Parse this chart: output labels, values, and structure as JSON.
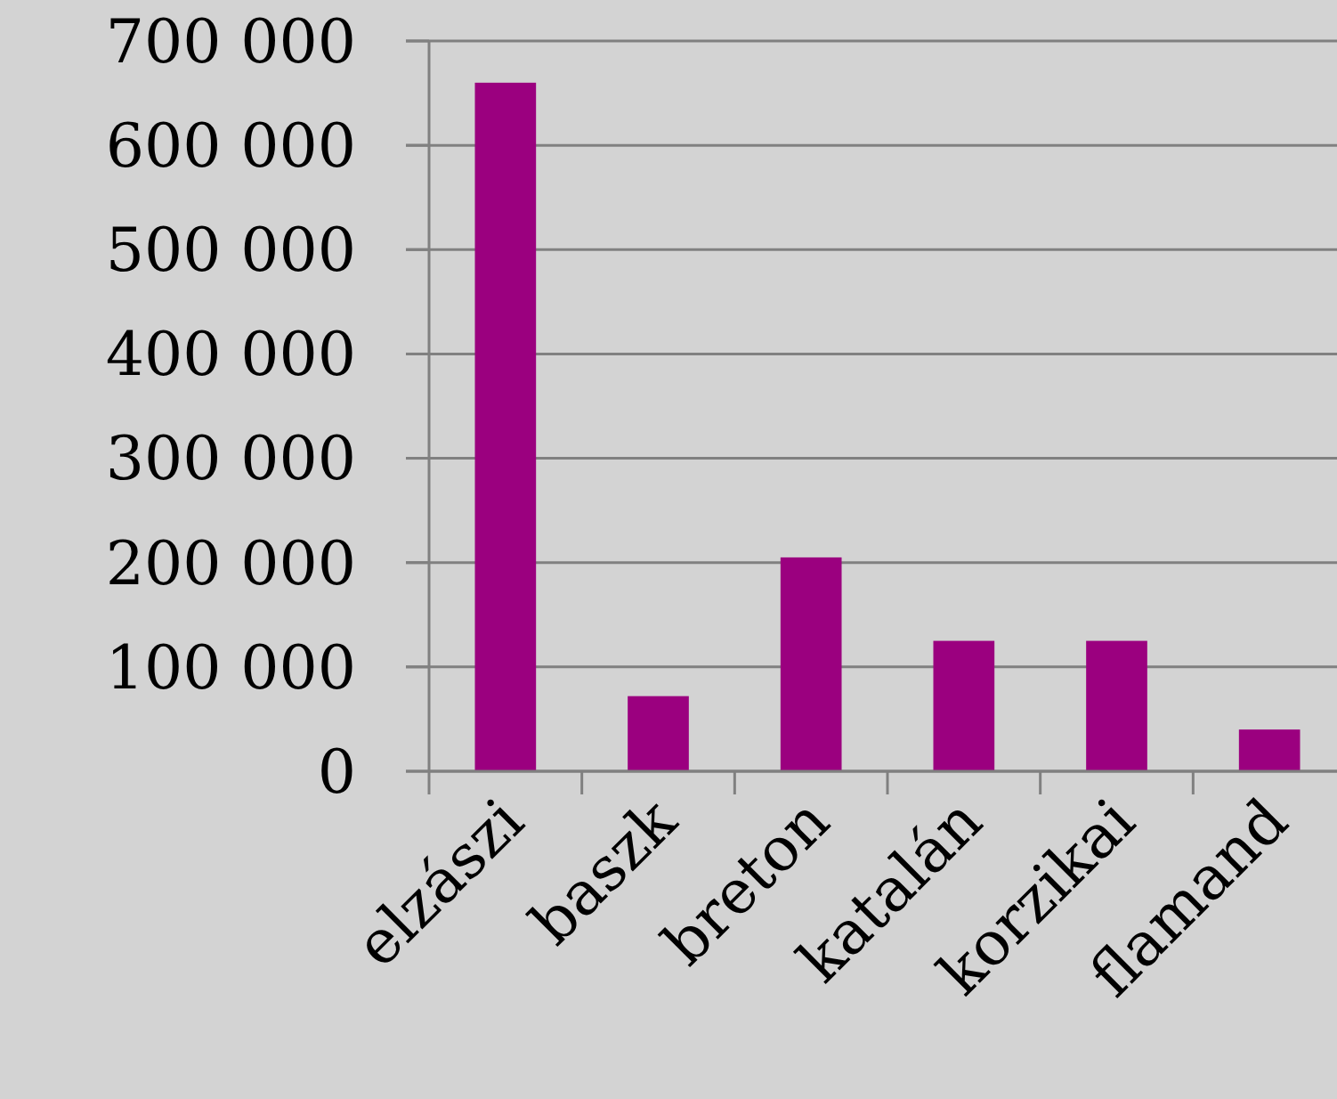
{
  "chart_data": {
    "type": "bar",
    "categories": [
      "elzászi",
      "baszk",
      "breton",
      "katalán",
      "korzikai",
      "flamand"
    ],
    "values": [
      660000,
      72000,
      205000,
      125000,
      125000,
      40000
    ],
    "color": "#9b007f",
    "ylim": [
      0,
      700000
    ],
    "yticks": [
      {
        "value": 0,
        "label": "0"
      },
      {
        "value": 100000,
        "label": "100 000"
      },
      {
        "value": 200000,
        "label": "200 000"
      },
      {
        "value": 300000,
        "label": "300 000"
      },
      {
        "value": 400000,
        "label": "400 000"
      },
      {
        "value": 500000,
        "label": "500 000"
      },
      {
        "value": 600000,
        "label": "600 000"
      },
      {
        "value": 700000,
        "label": "700 000"
      }
    ],
    "grid": "y"
  }
}
